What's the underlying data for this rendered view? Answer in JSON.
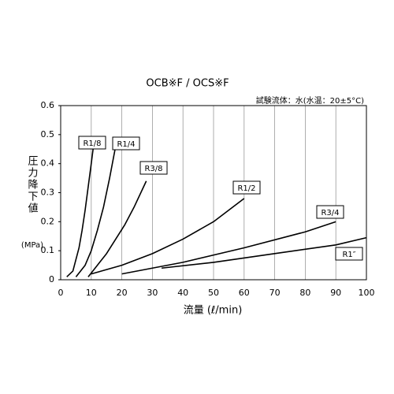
{
  "chart_data": {
    "type": "line",
    "title": "OCB※F / OCS※F",
    "note": "試験流体：水(水温：20±5°C)",
    "x_label": "流量 (ℓ/min)",
    "y_label": "圧力降下値",
    "y_unit": "(MPa)",
    "xlim": [
      0,
      100
    ],
    "xticks": [
      0,
      10,
      20,
      30,
      40,
      50,
      60,
      70,
      80,
      90,
      100
    ],
    "ylim": [
      0,
      0.6
    ],
    "yticks": [
      0,
      0.1,
      0.2,
      0.3,
      0.4,
      0.5,
      0.6
    ],
    "grid": "x",
    "series": [
      {
        "name": "R1/8",
        "color": "#000000",
        "x": [
          2,
          4,
          6,
          7,
          8,
          9,
          10,
          10.6
        ],
        "values": [
          0.01,
          0.03,
          0.11,
          0.17,
          0.24,
          0.32,
          0.4,
          0.45
        ]
      },
      {
        "name": "R1/4",
        "color": "#000000",
        "x": [
          5,
          8,
          10,
          12,
          14,
          16,
          17.8
        ],
        "values": [
          0.01,
          0.05,
          0.1,
          0.17,
          0.25,
          0.35,
          0.45
        ]
      },
      {
        "name": "R3/8",
        "color": "#000000",
        "x": [
          9,
          12,
          15,
          18,
          21,
          24,
          28
        ],
        "values": [
          0.01,
          0.05,
          0.09,
          0.14,
          0.19,
          0.25,
          0.34
        ]
      },
      {
        "name": "R1/2",
        "color": "#000000",
        "x": [
          10,
          20,
          30,
          40,
          50,
          60
        ],
        "values": [
          0.02,
          0.05,
          0.09,
          0.14,
          0.2,
          0.28
        ]
      },
      {
        "name": "R3/4",
        "color": "#000000",
        "x": [
          20,
          40,
          60,
          80,
          90
        ],
        "values": [
          0.02,
          0.06,
          0.11,
          0.165,
          0.2
        ]
      },
      {
        "name": "R1″",
        "color": "#000000",
        "x": [
          33,
          50,
          70,
          90,
          100
        ],
        "values": [
          0.04,
          0.06,
          0.09,
          0.12,
          0.145
        ]
      }
    ]
  }
}
